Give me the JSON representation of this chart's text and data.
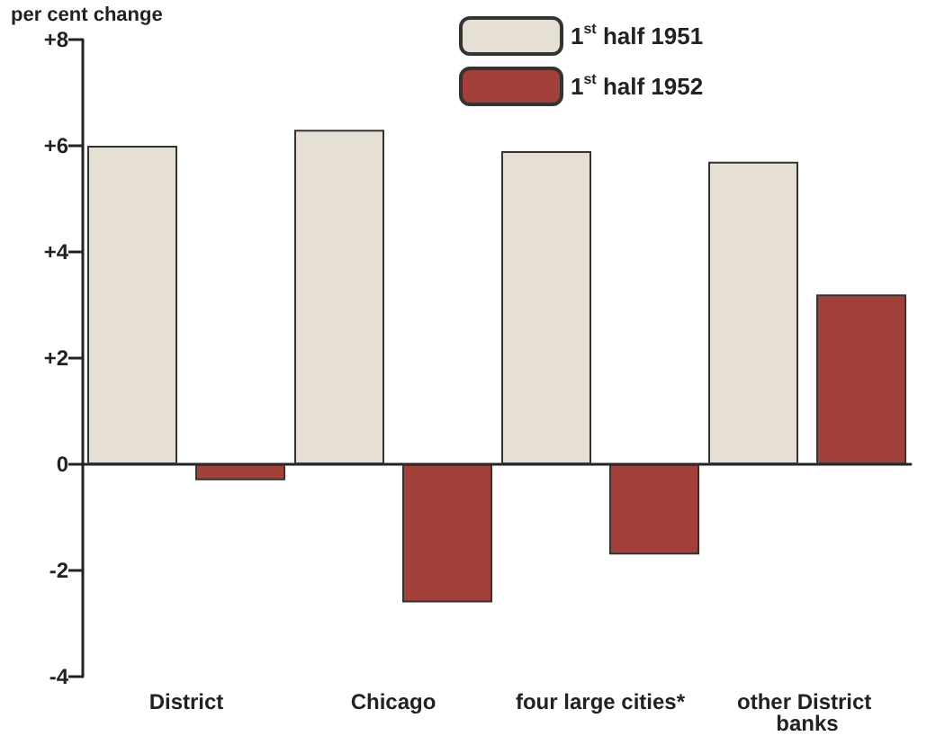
{
  "chart_data": {
    "type": "bar",
    "ylabel": "per cent change",
    "categories": [
      "District",
      "Chicago",
      "four large cities*",
      "other District banks"
    ],
    "series": [
      {
        "name": "1$^{st}$ half 1951",
        "color": "#e6e0d4",
        "values": [
          6.0,
          6.3,
          5.9,
          5.7
        ]
      },
      {
        "name": "1$^{st}$ half 1952",
        "color": "#a3403a",
        "values": [
          -0.3,
          -2.6,
          -1.7,
          3.2
        ]
      }
    ],
    "ylim": [
      -4,
      8
    ],
    "yticks": [
      -4,
      -2,
      0,
      {
        "value": 2,
        "label": "+2"
      },
      {
        "value": 4,
        "label": "+4"
      },
      {
        "value": 6,
        "label": "+6"
      },
      {
        "value": 8,
        "label": "+8"
      }
    ],
    "legend": "top"
  }
}
